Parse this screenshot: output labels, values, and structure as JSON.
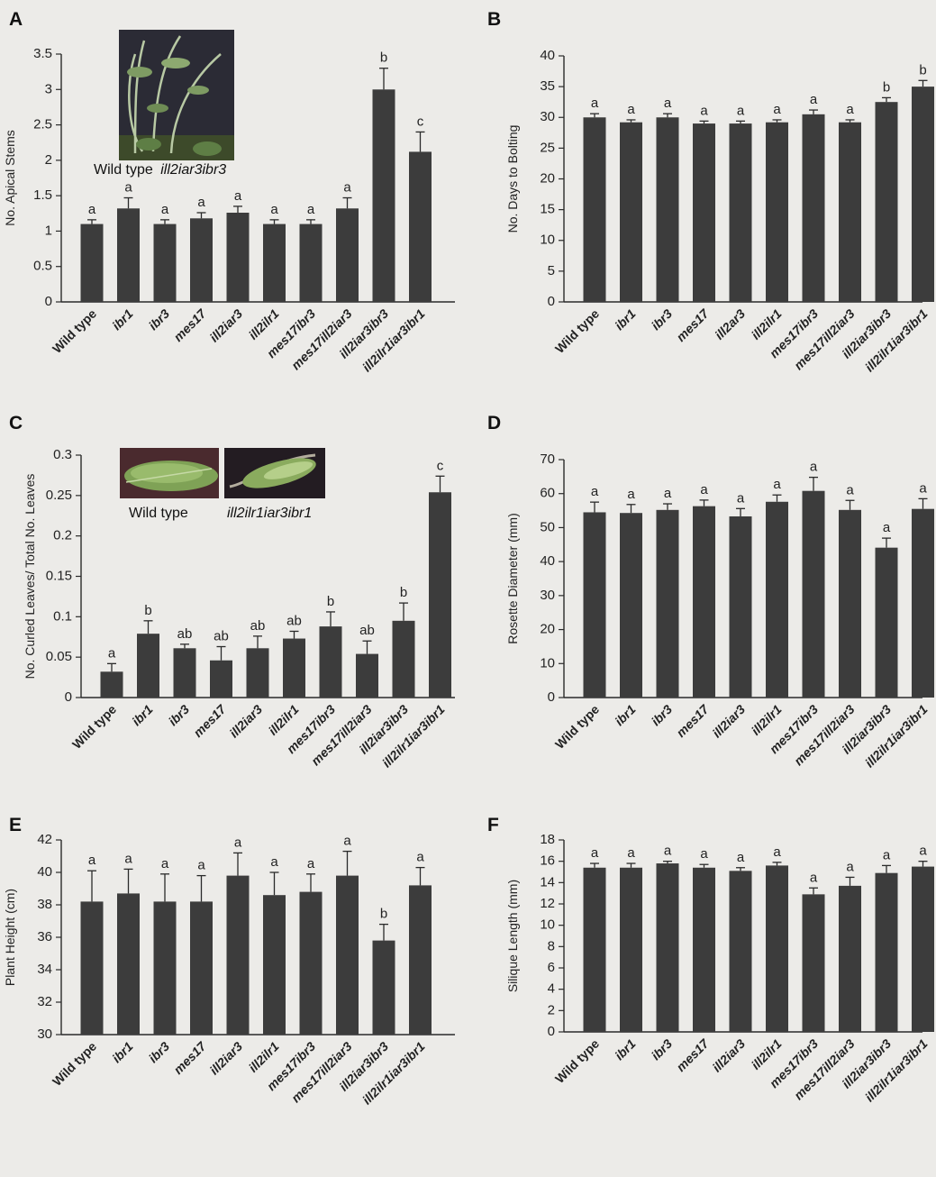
{
  "chart_data": [
    {
      "panel": "A",
      "type": "bar",
      "ylabel": "No. Apical Stems",
      "ylim": [
        0,
        3.5
      ],
      "yticks": [
        0,
        0.5,
        1,
        1.5,
        2,
        2.5,
        3,
        3.5
      ],
      "ytick_labels": [
        "0",
        "0.5",
        "1",
        "1.5",
        "2",
        "2.5",
        "3",
        "3.5"
      ],
      "categories": [
        "Wild type",
        "ibr1",
        "ibr3",
        "mes17",
        "ill2iar3",
        "ill2ilr1",
        "mes17ibr3",
        "mes17ill2iar3",
        "ill2iar3ibr3",
        "ill2ilr1iar3ibr1"
      ],
      "values": [
        1.1,
        1.32,
        1.1,
        1.18,
        1.26,
        1.1,
        1.1,
        1.32,
        3.0,
        2.12
      ],
      "errors": [
        0.06,
        0.15,
        0.06,
        0.08,
        0.09,
        0.06,
        0.06,
        0.15,
        0.3,
        0.28
      ],
      "significance": [
        "a",
        "a",
        "a",
        "a",
        "a",
        "a",
        "a",
        "a",
        "b",
        "c"
      ],
      "inset": {
        "label_plain": "Wild type",
        "label_italic": "ill2iar3ibr3"
      }
    },
    {
      "panel": "B",
      "type": "bar",
      "ylabel": "No. Days to Bolting",
      "ylim": [
        0,
        40
      ],
      "yticks": [
        0,
        5,
        10,
        15,
        20,
        25,
        30,
        35,
        40
      ],
      "ytick_labels": [
        "0",
        "5",
        "10",
        "15",
        "20",
        "25",
        "30",
        "35",
        "40"
      ],
      "categories": [
        "Wild type",
        "ibr1",
        "ibr3",
        "mes17",
        "ill2ar3",
        "ill2ilr1",
        "mes17ibr3",
        "mes17ill2iar3",
        "ill2iar3ibr3",
        "ill2ilr1iar3ibr1"
      ],
      "values": [
        30.0,
        29.2,
        30.0,
        29.0,
        29.0,
        29.2,
        30.5,
        29.2,
        32.5,
        35.0
      ],
      "errors": [
        0.6,
        0.4,
        0.6,
        0.4,
        0.4,
        0.4,
        0.7,
        0.4,
        0.7,
        1.0
      ],
      "significance": [
        "a",
        "a",
        "a",
        "a",
        "a",
        "a",
        "a",
        "a",
        "b",
        "b"
      ]
    },
    {
      "panel": "C",
      "type": "bar",
      "ylabel": "No. Curled Leaves/ Total No. Leaves",
      "ylim": [
        0,
        0.3
      ],
      "yticks": [
        0,
        0.05,
        0.1,
        0.15,
        0.2,
        0.25,
        0.3
      ],
      "ytick_labels": [
        "0",
        "0.05",
        "0.1",
        "0.15",
        "0.2",
        "0.25",
        "0.3"
      ],
      "categories": [
        "Wild type",
        "ibr1",
        "ibr3",
        "mes17",
        "ill2iar3",
        "ill2ilr1",
        "mes17ibr3",
        "mes17ill2iar3",
        "ill2iar3ibr3",
        "ill2ilr1iar3ibr1"
      ],
      "values": [
        0.032,
        0.079,
        0.061,
        0.046,
        0.061,
        0.073,
        0.088,
        0.054,
        0.095,
        0.254
      ],
      "errors": [
        0.01,
        0.016,
        0.005,
        0.017,
        0.015,
        0.009,
        0.018,
        0.016,
        0.022,
        0.02
      ],
      "significance": [
        "a",
        "b",
        "ab",
        "ab",
        "ab",
        "ab",
        "b",
        "ab",
        "b",
        "c"
      ],
      "inset": {
        "left_label": "Wild type",
        "right_label": "ill2ilr1iar3ibr1"
      }
    },
    {
      "panel": "D",
      "type": "bar",
      "ylabel": "Rosette Diameter (mm)",
      "ylim": [
        0,
        70
      ],
      "yticks": [
        0,
        10,
        20,
        30,
        40,
        50,
        60,
        70
      ],
      "ytick_labels": [
        "0",
        "10",
        "20",
        "30",
        "40",
        "50",
        "60",
        "70"
      ],
      "categories": [
        "Wild type",
        "ibr1",
        "ibr3",
        "mes17",
        "ill2iar3",
        "ill2ilr1",
        "mes17ibr3",
        "mes17ill2iar3",
        "ill2iar3ibr3",
        "ill2ilr1iar3ibr1"
      ],
      "values": [
        54.5,
        54.3,
        55.2,
        56.3,
        53.3,
        57.6,
        60.8,
        55.2,
        44.1,
        55.5
      ],
      "errors": [
        3.0,
        2.5,
        1.8,
        1.8,
        2.3,
        2.0,
        4.0,
        2.8,
        2.8,
        3.0
      ],
      "significance": [
        "a",
        "a",
        "a",
        "a",
        "a",
        "a",
        "a",
        "a",
        "a",
        "a"
      ]
    },
    {
      "panel": "E",
      "type": "bar",
      "ylabel": "Plant Height (cm)",
      "ylim": [
        30,
        42
      ],
      "yticks": [
        30,
        32,
        34,
        36,
        38,
        40,
        42
      ],
      "ytick_labels": [
        "30",
        "32",
        "34",
        "36",
        "38",
        "40",
        "42"
      ],
      "categories": [
        "Wild type",
        "ibr1",
        "ibr3",
        "mes17",
        "ill2iar3",
        "ill2ilr1",
        "mes17ibr3",
        "mes17ill2iar3",
        "ill2iar3ibr3",
        "ill2ilr1iar3ibr1"
      ],
      "values": [
        38.2,
        38.7,
        38.2,
        38.2,
        39.8,
        38.6,
        38.8,
        39.8,
        35.8,
        39.2
      ],
      "errors": [
        1.9,
        1.5,
        1.7,
        1.6,
        1.4,
        1.4,
        1.1,
        1.5,
        1.0,
        1.1
      ],
      "significance": [
        "a",
        "a",
        "a",
        "a",
        "a",
        "a",
        "a",
        "a",
        "b",
        "a"
      ]
    },
    {
      "panel": "F",
      "type": "bar",
      "ylabel": "Silique Length (mm)",
      "ylim": [
        0,
        18
      ],
      "yticks": [
        0,
        2,
        4,
        6,
        8,
        10,
        12,
        14,
        16,
        18
      ],
      "ytick_labels": [
        "0",
        "2",
        "4",
        "6",
        "8",
        "10",
        "12",
        "14",
        "16",
        "18"
      ],
      "categories": [
        "Wild type",
        "ibr1",
        "ibr3",
        "mes17",
        "ill2iar3",
        "ill2ilr1",
        "mes17ibr3",
        "mes17ill2iar3",
        "ill2iar3ibr3",
        "ill2ilr1iar3ibr1"
      ],
      "values": [
        15.4,
        15.4,
        15.8,
        15.4,
        15.1,
        15.6,
        12.9,
        13.7,
        14.9,
        15.5
      ],
      "errors": [
        0.4,
        0.4,
        0.2,
        0.3,
        0.3,
        0.3,
        0.6,
        0.8,
        0.7,
        0.5
      ],
      "significance": [
        "a",
        "a",
        "a",
        "a",
        "a",
        "a",
        "a",
        "a",
        "a",
        "a"
      ]
    }
  ],
  "colors": {
    "bar": "#3c3c3c",
    "axis": "#2a2a2a",
    "background": "#ecebe8"
  }
}
